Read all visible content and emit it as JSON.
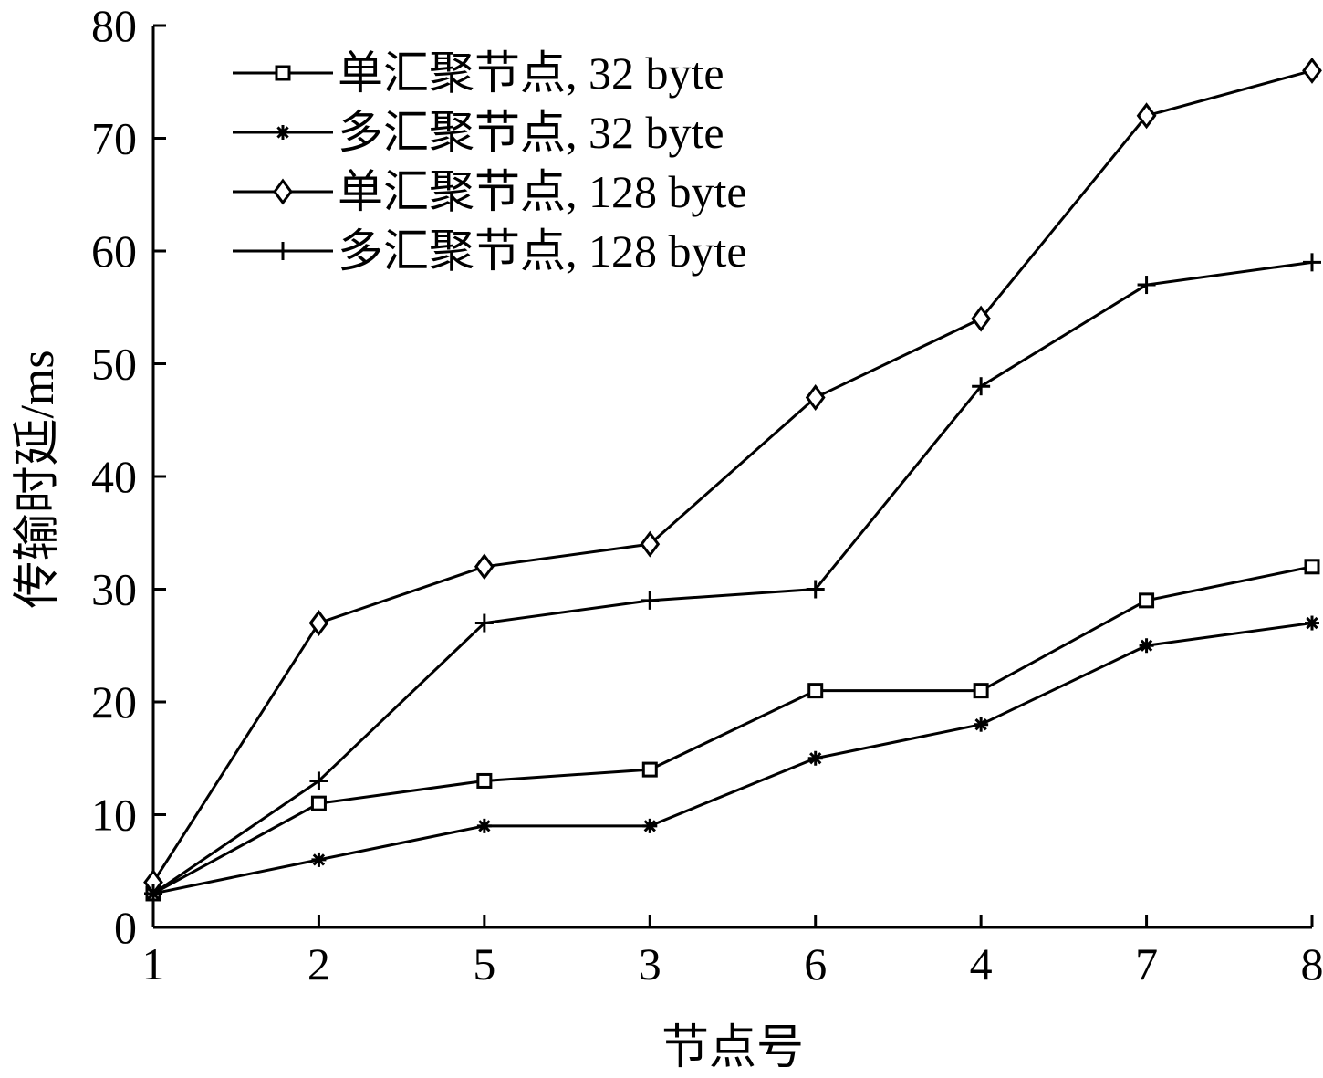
{
  "chart_data": {
    "type": "line",
    "categories": [
      "1",
      "2",
      "5",
      "3",
      "6",
      "4",
      "7",
      "8"
    ],
    "xlabel": "节点号",
    "ylabel": "传输时延/ms",
    "ylim": [
      0,
      80
    ],
    "yticks": [
      0,
      10,
      20,
      30,
      40,
      50,
      60,
      70,
      80
    ],
    "grid": false,
    "legend_position": "top-left",
    "series": [
      {
        "name": "单汇聚节点, 32 byte",
        "marker": "square",
        "values": [
          3,
          11,
          13,
          14,
          21,
          21,
          29,
          32
        ]
      },
      {
        "name": "多汇聚节点, 32 byte",
        "marker": "asterisk",
        "values": [
          3,
          6,
          9,
          9,
          15,
          18,
          25,
          27
        ]
      },
      {
        "name": "单汇聚节点, 128 byte",
        "marker": "diamond",
        "values": [
          4,
          27,
          32,
          34,
          47,
          54,
          72,
          76
        ]
      },
      {
        "name": "多汇聚节点, 128 byte",
        "marker": "plus",
        "values": [
          3,
          13,
          27,
          29,
          30,
          48,
          57,
          59
        ]
      }
    ],
    "colors": {
      "line": "#000000",
      "background": "#ffffff"
    }
  }
}
